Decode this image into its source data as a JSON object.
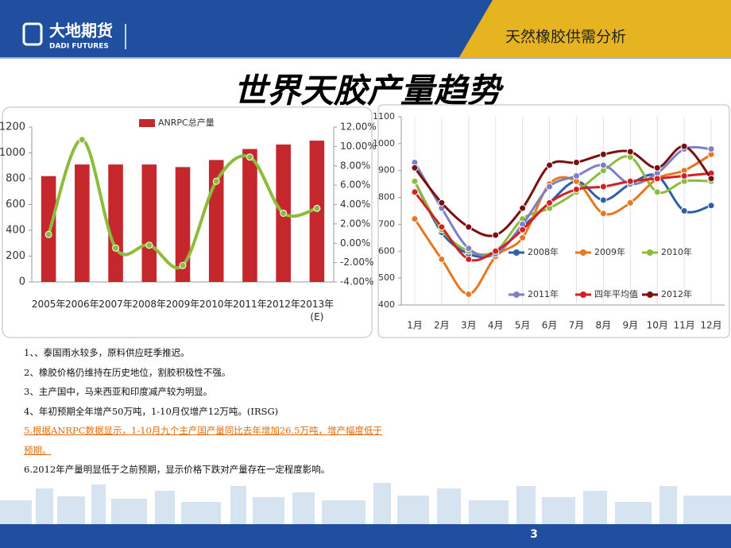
{
  "header": {
    "logo": "大地期货",
    "logo_sub": "DADI FUTURES",
    "section": "天然橡胶供需分析"
  },
  "title": "世界天胶产量趋势",
  "chart_data": [
    {
      "type": "bar",
      "categories": [
        "2005年",
        "2006年",
        "2007年",
        "2008年",
        "2009年",
        "2010年",
        "2011年",
        "2012年",
        "2013年(E)"
      ],
      "series": [
        {
          "name": "ANRPC总产量",
          "color": "#c4282c",
          "values": [
            820,
            910,
            910,
            910,
            890,
            945,
            1030,
            1065,
            1095
          ]
        },
        {
          "type": "line",
          "axis": "y2",
          "color": "#8dbb3c",
          "values": [
            0.9,
            10.7,
            -0.5,
            -0.2,
            -2.3,
            6.4,
            8.9,
            3.1,
            3.6
          ]
        }
      ],
      "ylim": [
        0,
        1200
      ],
      "yticks": [
        0,
        200,
        400,
        600,
        800,
        1000,
        1200
      ],
      "y2lim": [
        -4,
        12
      ],
      "y2ticks": [
        {
          "value": -4,
          "label": "-4.00%"
        },
        {
          "value": -2,
          "label": "-2.00%"
        },
        {
          "value": 0,
          "label": "0.00%"
        },
        {
          "value": 2,
          "label": "2.00%"
        },
        {
          "value": 4,
          "label": "4.00%"
        },
        {
          "value": 6,
          "label": "6.00%"
        },
        {
          "value": 8,
          "label": "8.00%"
        },
        {
          "value": 10,
          "label": "10.00%"
        },
        {
          "value": 12,
          "label": "12.00%"
        }
      ],
      "smooth": true,
      "legend": "top"
    },
    {
      "type": "line",
      "categories": [
        "1月",
        "2月",
        "3月",
        "4月",
        "5月",
        "6月",
        "7月",
        "8月",
        "9月",
        "10月",
        "11月",
        "12月"
      ],
      "series": [
        {
          "name": "2008年",
          "color": "#2e5fa8",
          "values": [
            860,
            670,
            590,
            590,
            690,
            780,
            860,
            790,
            850,
            880,
            750,
            770
          ]
        },
        {
          "name": "2009年",
          "color": "#e87722",
          "values": [
            720,
            570,
            440,
            580,
            650,
            850,
            860,
            740,
            780,
            870,
            900,
            960
          ]
        },
        {
          "name": "2010年",
          "color": "#8dbb3c",
          "values": [
            860,
            680,
            600,
            600,
            720,
            760,
            820,
            900,
            950,
            820,
            860,
            860
          ]
        },
        {
          "name": "2011年",
          "color": "#7f7fc4",
          "values": [
            930,
            760,
            610,
            590,
            700,
            840,
            880,
            920,
            850,
            890,
            980,
            980
          ]
        },
        {
          "name": "四年平均值",
          "color": "#d42020",
          "values": [
            820,
            690,
            570,
            600,
            680,
            780,
            830,
            840,
            860,
            870,
            880,
            890
          ]
        },
        {
          "name": "2012年",
          "color": "#7b1010",
          "values": [
            910,
            780,
            690,
            660,
            760,
            920,
            930,
            960,
            970,
            910,
            990,
            870
          ]
        }
      ],
      "ylim": [
        400,
        1100
      ],
      "yticks": [
        400,
        500,
        600,
        700,
        800,
        900,
        1000,
        1100
      ],
      "smooth": true,
      "legend": "bottom"
    }
  ],
  "notes": [
    "1、、泰国雨水较多，原料供应旺季推迟。",
    "2、橡胶价格仍维持在历史地位，割胶积极性不强。",
    "3、主产国中，马来西亚和印度减产较为明显。",
    "4、年初预期全年增产50万吨，1-10月仅增产12万吨。(IRSG)",
    "5.根据ANRPC数据显示，1-10月九个主产国产量同比去年增加26.5万吨，增产幅度低于预期。",
    "6.2012年产量明显低于之前预期，显示价格下跌对产量存在一定程度影响。"
  ],
  "page_number": "3"
}
